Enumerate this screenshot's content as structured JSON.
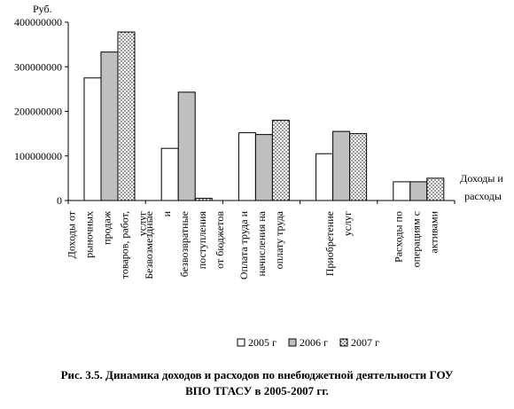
{
  "chart_data": {
    "type": "bar",
    "ylabel": "Руб.",
    "xlabel": "Доходы и расходы",
    "ylim": [
      0,
      400000000
    ],
    "yticks": [
      "0",
      "100000000",
      "200000000",
      "300000000",
      "400000000"
    ],
    "categories": [
      [
        "Доходы от",
        "рыночных",
        "продаж",
        "товаров, работ,",
        "услуг"
      ],
      [
        "Безвозмездные",
        "и",
        "безвозвратные",
        "поступления",
        "от бюджетов"
      ],
      [
        "Оплата труда и",
        "начисления на",
        "оплату труда"
      ],
      [
        "Приобретение",
        "услуг"
      ],
      [
        "Расходы по",
        "операциям с",
        "активами"
      ]
    ],
    "series": [
      {
        "name": "2005 г",
        "values": [
          275000000,
          117000000,
          152000000,
          105000000,
          42000000
        ]
      },
      {
        "name": "2006 г",
        "values": [
          333000000,
          243000000,
          148000000,
          155000000,
          42000000
        ]
      },
      {
        "name": "2007 г",
        "values": [
          378000000,
          5000000,
          180000000,
          150000000,
          50000000
        ]
      }
    ],
    "grid": false,
    "legend": "bottom-right"
  },
  "caption": {
    "line1": "Рис. 3.5. Динамика доходов и расходов по внебюджетной деятельности ГОУ",
    "line2": "ВПО ТГАСУ в 2005-2007 гг."
  }
}
